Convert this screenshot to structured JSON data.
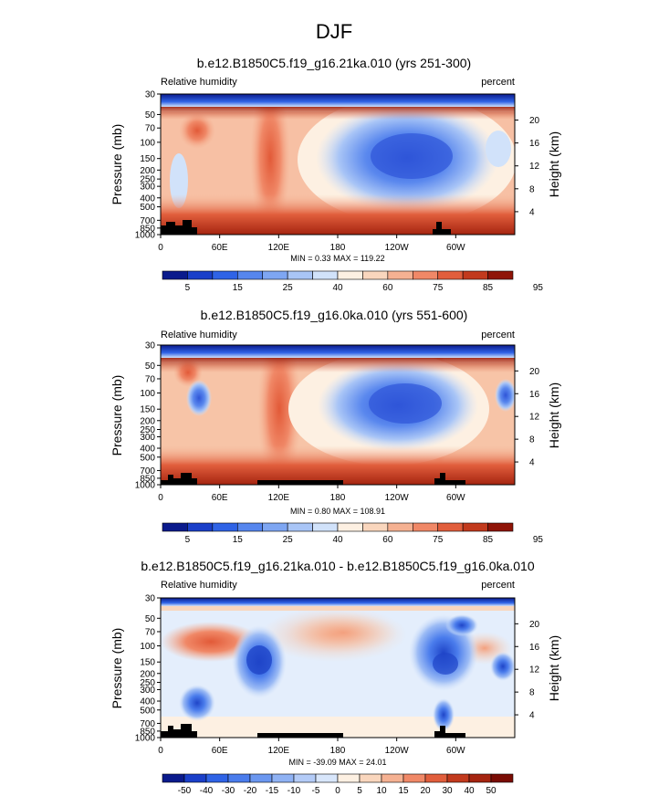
{
  "page_title": "DJF",
  "chart_data": [
    {
      "type": "heatmap",
      "title": "b.e12.B1850C5.f19_g16.21ka.010 (yrs 251-300)",
      "left_label": "Relative humidity",
      "right_label": "percent",
      "ylabel": "Pressure (mb)",
      "ylabel_right": "Height (km)",
      "pressure_ticks": [
        "30",
        "50",
        "70",
        "100",
        "150",
        "200",
        "250",
        "300",
        "400",
        "500",
        "700",
        "850",
        "1000"
      ],
      "height_ticks": [
        "20",
        "16",
        "12",
        "8",
        "4"
      ],
      "x_ticks": [
        "0",
        "60E",
        "120E",
        "180",
        "120W",
        "60W"
      ],
      "stats": "MIN =   0.33  MAX = 119.22",
      "colorbar_labels": [
        "5",
        "15",
        "25",
        "40",
        "60",
        "75",
        "85",
        "95"
      ],
      "colorbar_colors": [
        "#0a1a8c",
        "#1a3fc9",
        "#2f63e6",
        "#5686ee",
        "#7ea6f2",
        "#a9c5f6",
        "#d1e2fa",
        "#fdf0e2",
        "#f9d6bd",
        "#f5b192",
        "#f08867",
        "#e15e3c",
        "#c23a1d",
        "#8f1407"
      ]
    },
    {
      "type": "heatmap",
      "title": "b.e12.B1850C5.f19_g16.0ka.010 (yrs 551-600)",
      "left_label": "Relative humidity",
      "right_label": "percent",
      "ylabel": "Pressure (mb)",
      "ylabel_right": "Height (km)",
      "pressure_ticks": [
        "30",
        "50",
        "70",
        "100",
        "150",
        "200",
        "250",
        "300",
        "400",
        "500",
        "700",
        "850",
        "1000"
      ],
      "height_ticks": [
        "20",
        "16",
        "12",
        "8",
        "4"
      ],
      "x_ticks": [
        "0",
        "60E",
        "120E",
        "180",
        "120W",
        "60W"
      ],
      "stats": "MIN =   0.80  MAX = 108.91",
      "colorbar_labels": [
        "5",
        "15",
        "25",
        "40",
        "60",
        "75",
        "85",
        "95"
      ],
      "colorbar_colors": [
        "#0a1a8c",
        "#1a3fc9",
        "#2f63e6",
        "#5686ee",
        "#7ea6f2",
        "#a9c5f6",
        "#d1e2fa",
        "#fdf0e2",
        "#f9d6bd",
        "#f5b192",
        "#f08867",
        "#e15e3c",
        "#c23a1d",
        "#8f1407"
      ]
    },
    {
      "type": "heatmap",
      "title": "b.e12.B1850C5.f19_g16.21ka.010 - b.e12.B1850C5.f19_g16.0ka.010",
      "left_label": "Relative humidity",
      "right_label": "percent",
      "ylabel": "Pressure (mb)",
      "ylabel_right": "Height (km)",
      "pressure_ticks": [
        "30",
        "50",
        "70",
        "100",
        "150",
        "200",
        "250",
        "300",
        "400",
        "500",
        "700",
        "850",
        "1000"
      ],
      "height_ticks": [
        "20",
        "16",
        "12",
        "8",
        "4"
      ],
      "x_ticks": [
        "0",
        "60E",
        "120E",
        "180",
        "120W",
        "60W"
      ],
      "stats": "MIN = -39.09  MAX = 24.01",
      "colorbar_labels": [
        "-50",
        "-40",
        "-30",
        "-20",
        "-15",
        "-10",
        "-5",
        "0",
        "5",
        "10",
        "15",
        "20",
        "30",
        "40",
        "50"
      ],
      "colorbar_colors": [
        "#0a1a8c",
        "#1a3fc9",
        "#2f63e6",
        "#4a7cec",
        "#6b97f0",
        "#8fb2f4",
        "#b3cbf7",
        "#d8e6fb",
        "#fdf0e2",
        "#f9d6bd",
        "#f5b192",
        "#f08867",
        "#e15e3c",
        "#c23a1d",
        "#a52410",
        "#7a0c04"
      ]
    }
  ]
}
